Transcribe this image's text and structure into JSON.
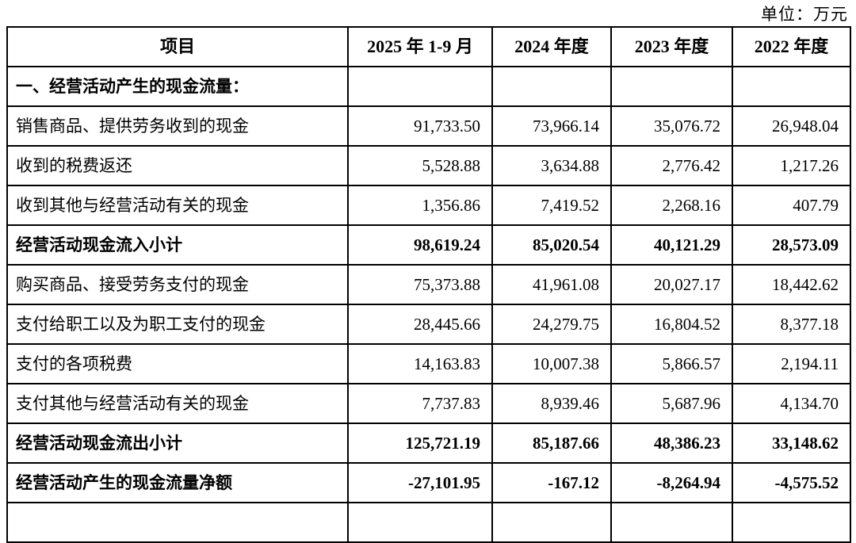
{
  "meta": {
    "unit_label": "单位：万元"
  },
  "table": {
    "headers": [
      "项目",
      "2025 年 1-9 月",
      "2024 年度",
      "2023 年度",
      "2022 年度"
    ],
    "rows": [
      {
        "label": "一、经营活动产生的现金流量：",
        "bold": true,
        "values": [
          "",
          "",
          "",
          ""
        ]
      },
      {
        "label": "销售商品、提供劳务收到的现金",
        "bold": false,
        "values": [
          "91,733.50",
          "73,966.14",
          "35,076.72",
          "26,948.04"
        ]
      },
      {
        "label": "收到的税费返还",
        "bold": false,
        "values": [
          "5,528.88",
          "3,634.88",
          "2,776.42",
          "1,217.26"
        ]
      },
      {
        "label": "收到其他与经营活动有关的现金",
        "bold": false,
        "values": [
          "1,356.86",
          "7,419.52",
          "2,268.16",
          "407.79"
        ]
      },
      {
        "label": "经营活动现金流入小计",
        "bold": true,
        "values": [
          "98,619.24",
          "85,020.54",
          "40,121.29",
          "28,573.09"
        ]
      },
      {
        "label": "购买商品、接受劳务支付的现金",
        "bold": false,
        "values": [
          "75,373.88",
          "41,961.08",
          "20,027.17",
          "18,442.62"
        ]
      },
      {
        "label": "支付给职工以及为职工支付的现金",
        "bold": false,
        "values": [
          "28,445.66",
          "24,279.75",
          "16,804.52",
          "8,377.18"
        ]
      },
      {
        "label": "支付的各项税费",
        "bold": false,
        "values": [
          "14,163.83",
          "10,007.38",
          "5,866.57",
          "2,194.11"
        ]
      },
      {
        "label": "支付其他与经营活动有关的现金",
        "bold": false,
        "values": [
          "7,737.83",
          "8,939.46",
          "5,687.96",
          "4,134.70"
        ]
      },
      {
        "label": "经营活动现金流出小计",
        "bold": true,
        "values": [
          "125,721.19",
          "85,187.66",
          "48,386.23",
          "33,148.62"
        ]
      },
      {
        "label": "经营活动产生的现金流量净额",
        "bold": true,
        "values": [
          "-27,101.95",
          "-167.12",
          "-8,264.94",
          "-4,575.52"
        ]
      }
    ]
  }
}
